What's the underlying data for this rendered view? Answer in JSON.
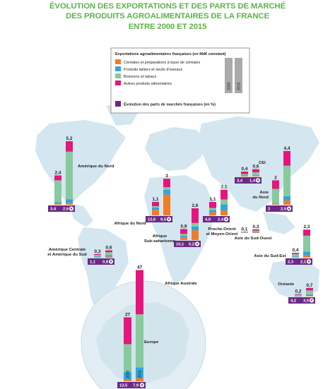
{
  "title": {
    "line1": "ÉVOLUTION DES EXPORTATIONS ET DES PARTS DE MARCHÉ",
    "line2": "DES PRODUITS AGROALIMENTAIRES DE LA FRANCE",
    "line3": "ENTRE 2000 ET 2015"
  },
  "legend": {
    "title": "Exportations agroalimentaires françaises (en Md€ constant)",
    "year_a": "2000",
    "year_b": "2015",
    "share_label": "Évolution des parts de marchés françaises (en %)"
  },
  "colors": {
    "cereals": "#f07c28",
    "dairy": "#2fa6de",
    "drinks": "#89c99e",
    "other": "#e5157d",
    "share_box": "#6a2a86",
    "map": "#d4e6ef",
    "title": "#5ab447"
  },
  "chart_data": {
    "type": "bar",
    "stacked": true,
    "unit": "Md€",
    "years": [
      "2000",
      "2015"
    ],
    "series": [
      {
        "name": "Céréales et préparations à base de céréales",
        "color": "#f07c28"
      },
      {
        "name": "Produits laitiers et oeufs d'oiseaux",
        "color": "#2fa6de"
      },
      {
        "name": "Boissons et tabacs",
        "color": "#89c99e"
      },
      {
        "name": "Autres produits alimentaires",
        "color": "#e5157d"
      }
    ],
    "regions": [
      {
        "name": "Amérique du Nord",
        "totals": [
          "2,4",
          "5,2"
        ],
        "shares": [
          "3,4",
          "2,6"
        ],
        "trend": "down",
        "bars": [
          [
            0.1,
            0.1,
            1.8,
            0.4
          ],
          [
            0.15,
            0.3,
            3.9,
            0.85
          ]
        ]
      },
      {
        "name": "Amérique Centrale et Amérique du Sud",
        "totals": [
          "0,3",
          "0,6"
        ],
        "shares": [
          "1,1",
          "0,8"
        ],
        "trend": "down",
        "bars": [
          [
            0.05,
            0.05,
            0.13,
            0.07
          ],
          [
            0.1,
            0.1,
            0.25,
            0.15
          ]
        ]
      },
      {
        "name": "Afrique du Nord",
        "totals": [
          "1,1",
          "3"
        ],
        "shares": [
          "12,6",
          "9,5"
        ],
        "trend": "down",
        "bars": [
          [
            0.45,
            0.2,
            0.1,
            0.35
          ],
          [
            1.7,
            0.4,
            0.2,
            0.7
          ]
        ]
      },
      {
        "name": "Afrique Sub-saharienne",
        "totals": [
          "0,9",
          "2,6"
        ],
        "shares": [
          "10,1",
          "5,2"
        ],
        "trend": "down",
        "bars": [
          [
            0.25,
            0.1,
            0.15,
            0.4
          ],
          [
            0.8,
            0.3,
            0.3,
            1.2
          ]
        ]
      },
      {
        "name": "Proche-Orient et Moyen-Orient",
        "totals": [
          "1,1",
          "2,1"
        ],
        "shares": [
          "4,9",
          "2,4"
        ],
        "trend": "down",
        "bars": [
          [
            0.25,
            0.2,
            0.15,
            0.5
          ],
          [
            0.4,
            0.5,
            0.4,
            0.8
          ]
        ]
      },
      {
        "name": "CEI",
        "totals": [
          "0,4",
          "0,6"
        ],
        "shares": [
          "3,4",
          "1,4"
        ],
        "trend": "down",
        "bars": [
          [
            0.05,
            0.05,
            0.1,
            0.2
          ],
          [
            0.05,
            0.05,
            0.25,
            0.25
          ]
        ]
      },
      {
        "name": "Asie du Nord",
        "totals": [
          "2",
          "4,4"
        ],
        "shares": [
          "2",
          "2,5"
        ],
        "trend": "up",
        "bars": [
          [
            0.05,
            0.05,
            1.2,
            0.7
          ],
          [
            0.35,
            0.35,
            2.5,
            1.2
          ]
        ]
      },
      {
        "name": "Asie du Sud-Ouest",
        "totals": [
          "0,1",
          "0,3"
        ],
        "shares": [
          "",
          ""
        ],
        "trend": "",
        "bars": [
          [
            0.02,
            0.02,
            0.03,
            0.03
          ],
          [
            0.05,
            0.05,
            0.1,
            0.1
          ]
        ]
      },
      {
        "name": "Asie du Sud-Est",
        "totals": [
          "0,4",
          "2,3"
        ],
        "shares": [
          "2,3",
          "2,1"
        ],
        "trend": "down",
        "bars": [
          [
            0.05,
            0.05,
            0.2,
            0.1
          ],
          [
            0.2,
            0.3,
            1.3,
            0.5
          ]
        ]
      },
      {
        "name": "Océanie",
        "totals": [
          "0,2",
          "0,7"
        ],
        "shares": [
          "4,2",
          "3,5"
        ],
        "trend": "down",
        "bars": [
          [
            0.02,
            0.03,
            0.1,
            0.05
          ],
          [
            0.05,
            0.1,
            0.35,
            0.2
          ]
        ]
      },
      {
        "name": "Europe",
        "totals": [
          "27",
          "47"
        ],
        "shares": [
          "12,5",
          "7,9"
        ],
        "trend": "down",
        "bars": [
          [
            0.7,
            3.2,
            11.8,
            11.3
          ],
          [
            1.3,
            4.5,
            22.5,
            18.7
          ]
        ]
      }
    ],
    "annotations": [
      "Afrique Australe"
    ]
  }
}
